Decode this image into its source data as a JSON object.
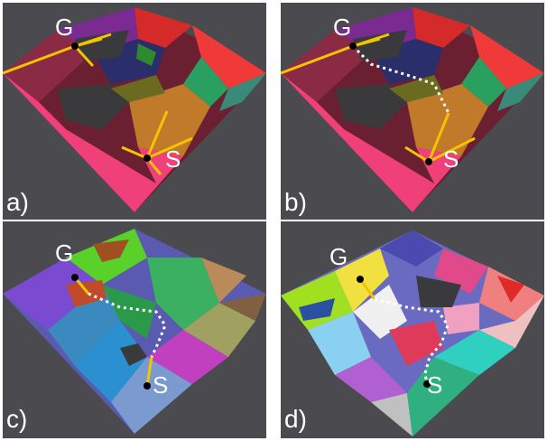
{
  "panels": [
    {
      "id": "a",
      "sublabel": "a)",
      "goal": "G",
      "start": "S"
    },
    {
      "id": "b",
      "sublabel": "b)",
      "goal": "G",
      "start": "S"
    },
    {
      "id": "c",
      "sublabel": "c)",
      "goal": "G",
      "start": "S"
    },
    {
      "id": "d",
      "sublabel": "d)",
      "goal": "G",
      "start": "S"
    }
  ],
  "colors": {
    "background": "#4a4a4f",
    "path_solid": "#f5c400",
    "path_dotted": "#ffffff",
    "label": "#ffffff"
  }
}
